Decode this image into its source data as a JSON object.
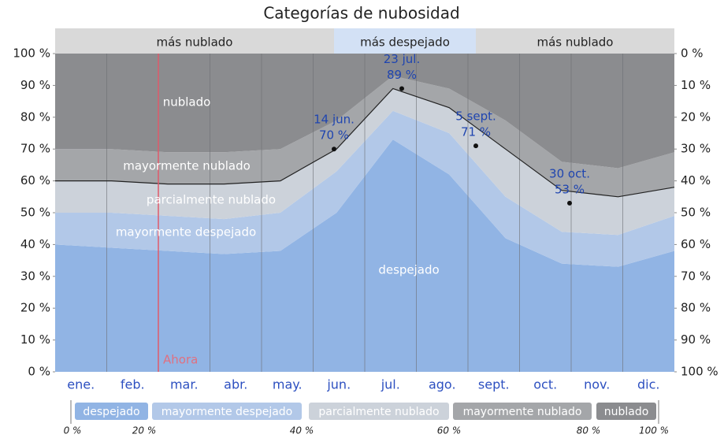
{
  "chart_data": {
    "type": "stacked_area",
    "title": "Categorías de nubosidad",
    "categories": [
      "ene.",
      "feb.",
      "mar.",
      "abr.",
      "may.",
      "jun.",
      "jul.",
      "ago.",
      "sept.",
      "oct.",
      "nov.",
      "dic."
    ],
    "series": [
      {
        "name": "despejado",
        "color": "#91b4e4",
        "values": [
          40,
          39,
          38,
          37,
          38,
          50,
          73,
          62,
          42,
          34,
          33,
          38
        ]
      },
      {
        "name": "mayormente despejado",
        "color": "#b2c8e8",
        "values": [
          10,
          11,
          11,
          11,
          12,
          13,
          9,
          13,
          13,
          10,
          10,
          11
        ]
      },
      {
        "name": "parcialmente nublado",
        "color": "#ccd2da",
        "values": [
          10,
          10,
          10,
          11,
          10,
          7,
          7,
          8,
          15,
          13,
          12,
          9
        ]
      },
      {
        "name": "mayormente nublado",
        "color": "#a4a6a9",
        "values": [
          10,
          10,
          10,
          10,
          10,
          9,
          4,
          6,
          9,
          9,
          9,
          11
        ]
      },
      {
        "name": "nublado",
        "color": "#8b8c8f",
        "values": [
          30,
          30,
          31,
          31,
          30,
          21,
          7,
          11,
          21,
          34,
          36,
          31
        ]
      }
    ],
    "ylim": [
      0,
      100
    ],
    "yticks": [
      {
        "value": 0,
        "label": "0 %"
      },
      {
        "value": 10,
        "label": "10 %"
      },
      {
        "value": 20,
        "label": "20 %"
      },
      {
        "value": 30,
        "label": "30 %"
      },
      {
        "value": 40,
        "label": "40 %"
      },
      {
        "value": 50,
        "label": "50 %"
      },
      {
        "value": 60,
        "label": "60 %"
      },
      {
        "value": 70,
        "label": "70 %"
      },
      {
        "value": 80,
        "label": "80 %"
      },
      {
        "value": 90,
        "label": "90 %"
      },
      {
        "value": 100,
        "label": "100 %"
      }
    ],
    "y2lim": [
      100,
      0
    ],
    "y2ticks": [
      {
        "value": 0,
        "label": "0 %"
      },
      {
        "value": 10,
        "label": "10 %"
      },
      {
        "value": 20,
        "label": "20 %"
      },
      {
        "value": 30,
        "label": "30 %"
      },
      {
        "value": 40,
        "label": "40 %"
      },
      {
        "value": 50,
        "label": "50 %"
      },
      {
        "value": 60,
        "label": "60 %"
      },
      {
        "value": 70,
        "label": "70 %"
      },
      {
        "value": 80,
        "label": "80 %"
      },
      {
        "value": 90,
        "label": "90 %"
      },
      {
        "value": 100,
        "label": "100 %"
      }
    ],
    "bands": [
      "más nublado",
      "más despejado",
      "más nublado"
    ],
    "now_label": "Ahora",
    "annotations": [
      {
        "text": "14 jun.",
        "value": 70,
        "value_label": "70 %"
      },
      {
        "text": "23 jul.",
        "value": 89,
        "value_label": "89 %"
      },
      {
        "text": "5 sept.",
        "value": 71,
        "value_label": "71 %"
      },
      {
        "text": "30 oct.",
        "value": 53,
        "value_label": "53 %"
      }
    ],
    "legend_scale": [
      "0 %",
      "20 %",
      "40 %",
      "60 %",
      "80 %",
      "100 %"
    ]
  }
}
